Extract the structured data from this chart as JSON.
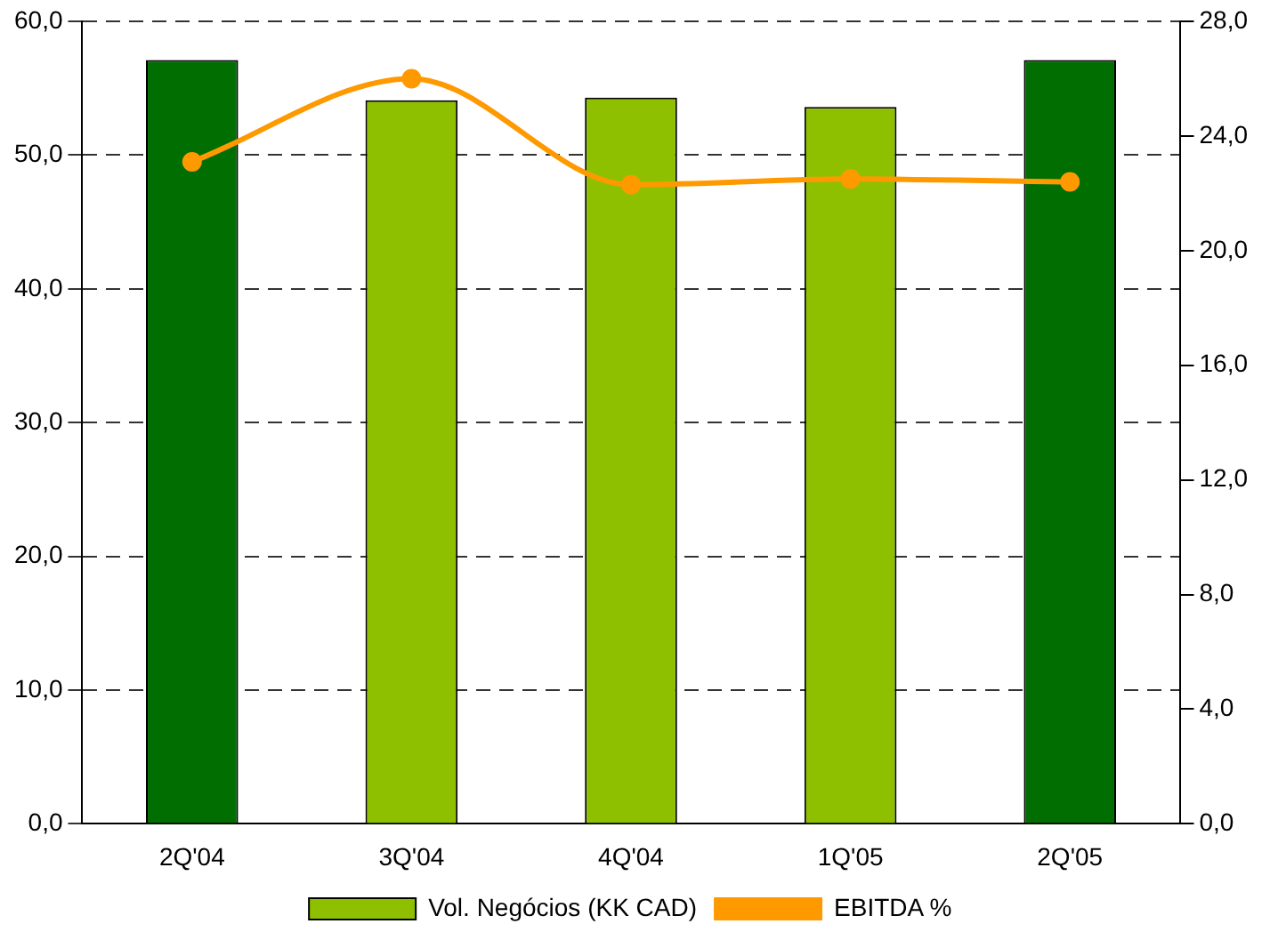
{
  "chart_data": {
    "type": "bar",
    "categories": [
      "2Q'04",
      "3Q'04",
      "4Q'04",
      "1Q'05",
      "2Q'05"
    ],
    "series": [
      {
        "name": "Vol. Negócios (KK CAD)",
        "color": "#8fc000",
        "colors": [
          "#006e00",
          "#8fc000",
          "#8fc000",
          "#8fc000",
          "#006e00"
        ],
        "values": [
          57.1,
          54.1,
          54.3,
          53.6,
          57.1
        ]
      },
      {
        "name": "EBITDA %",
        "type": "line",
        "axis": "y2",
        "color": "#ff9900",
        "values": [
          23.1,
          26.0,
          22.3,
          22.5,
          22.4
        ]
      }
    ],
    "ylim": [
      0,
      60
    ],
    "yticks": [
      {
        "value": 0,
        "label": "0,0"
      },
      {
        "value": 10,
        "label": "10,0"
      },
      {
        "value": 20,
        "label": "20,0"
      },
      {
        "value": 30,
        "label": "30,0"
      },
      {
        "value": 40,
        "label": "40,0"
      },
      {
        "value": 50,
        "label": "50,0"
      },
      {
        "value": 60,
        "label": "60,0"
      }
    ],
    "y2lim": [
      0,
      28
    ],
    "y2ticks": [
      {
        "value": 0,
        "label": "0,0"
      },
      {
        "value": 4,
        "label": "4,0"
      },
      {
        "value": 8,
        "label": "8,0"
      },
      {
        "value": 12,
        "label": "12,0"
      },
      {
        "value": 16,
        "label": "16,0"
      },
      {
        "value": 20,
        "label": "20,0"
      },
      {
        "value": 24,
        "label": "24,0"
      },
      {
        "value": 28,
        "label": "28,0"
      }
    ],
    "grid": "y",
    "legend": "bottom",
    "marker": "circle",
    "line_style": "solid"
  }
}
